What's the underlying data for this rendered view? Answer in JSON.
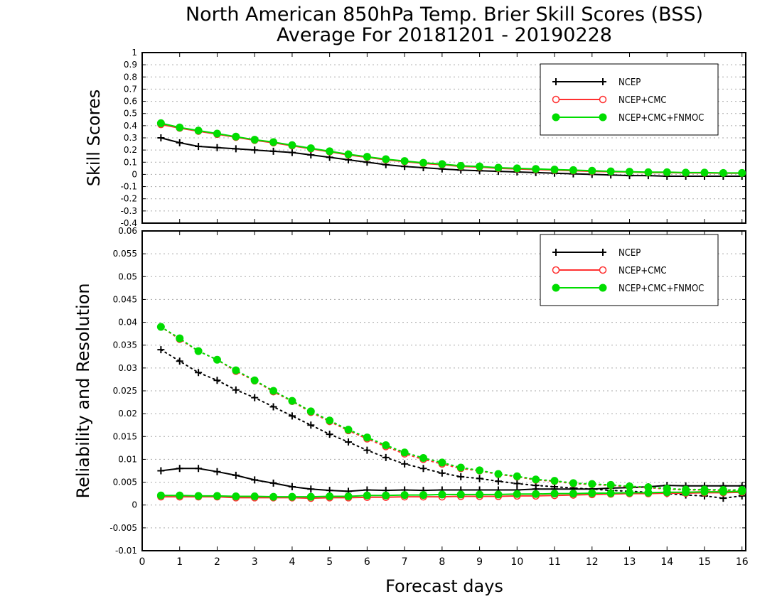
{
  "title_line1": "North American 850hPa Temp. Brier Skill Scores (BSS)",
  "title_line2": "Average For 20181201 - 20190228",
  "xlabel": "Forecast days",
  "chart_data": [
    {
      "type": "line",
      "ylabel": "Skill Scores",
      "xlim": [
        0,
        16.1
      ],
      "ylim": [
        -0.4,
        1
      ],
      "x_ticks": [
        "0",
        "1",
        "2",
        "3",
        "4",
        "5",
        "6",
        "7",
        "8",
        "9",
        "10",
        "11",
        "12",
        "13",
        "14",
        "15",
        "16"
      ],
      "y_ticks": [
        "-0.4",
        "-0.3",
        "-0.2",
        "-0.1",
        "0",
        "0.1",
        "0.2",
        "0.3",
        "0.4",
        "0.5",
        "0.6",
        "0.7",
        "0.8",
        "0.9",
        "1"
      ],
      "grid": true,
      "legend": "top-right",
      "x": [
        0.5,
        1,
        1.5,
        2,
        2.5,
        3,
        3.5,
        4,
        4.5,
        5,
        5.5,
        6,
        6.5,
        7,
        7.5,
        8,
        8.5,
        9,
        9.5,
        10,
        10.5,
        11,
        11.5,
        12,
        12.5,
        13,
        13.5,
        14,
        14.5,
        15,
        15.5,
        16
      ],
      "series": [
        {
          "name": "NCEP",
          "color": "#000000",
          "marker": "plus",
          "values": [
            0.3,
            0.26,
            0.23,
            0.22,
            0.21,
            0.2,
            0.19,
            0.18,
            0.16,
            0.14,
            0.12,
            0.1,
            0.08,
            0.065,
            0.055,
            0.045,
            0.035,
            0.03,
            0.025,
            0.02,
            0.015,
            0.01,
            0.005,
            0.0,
            -0.005,
            -0.01,
            -0.01,
            -0.015,
            -0.015,
            -0.015,
            -0.015,
            -0.015
          ]
        },
        {
          "name": "NCEP+CMC",
          "color": "#ff3030",
          "marker": "open-circle",
          "values": [
            0.41,
            0.38,
            0.355,
            0.33,
            0.305,
            0.28,
            0.26,
            0.235,
            0.21,
            0.185,
            0.16,
            0.14,
            0.12,
            0.105,
            0.09,
            0.08,
            0.065,
            0.06,
            0.05,
            0.045,
            0.04,
            0.035,
            0.03,
            0.025,
            0.022,
            0.02,
            0.015,
            0.015,
            0.012,
            0.012,
            0.01,
            0.01
          ]
        },
        {
          "name": "NCEP+CMC+FNMOC",
          "color": "#00dd00",
          "marker": "filled-circle",
          "values": [
            0.42,
            0.385,
            0.36,
            0.335,
            0.31,
            0.285,
            0.265,
            0.24,
            0.215,
            0.19,
            0.165,
            0.145,
            0.125,
            0.11,
            0.095,
            0.085,
            0.07,
            0.065,
            0.055,
            0.05,
            0.045,
            0.04,
            0.035,
            0.03,
            0.025,
            0.022,
            0.018,
            0.018,
            0.015,
            0.015,
            0.012,
            0.012
          ]
        }
      ]
    },
    {
      "type": "line",
      "ylabel": "Reliability and Resolution",
      "xlim": [
        0,
        16.1
      ],
      "ylim": [
        -0.01,
        0.06
      ],
      "x_ticks": [
        "0",
        "1",
        "2",
        "3",
        "4",
        "5",
        "6",
        "7",
        "8",
        "9",
        "10",
        "11",
        "12",
        "13",
        "14",
        "15",
        "16"
      ],
      "y_ticks": [
        "-0.01",
        "-0.005",
        "0",
        "0.005",
        "0.01",
        "0.015",
        "0.02",
        "0.025",
        "0.03",
        "0.035",
        "0.04",
        "0.045",
        "0.05",
        "0.055",
        "0.06"
      ],
      "grid": true,
      "legend": "top-right",
      "x": [
        0.5,
        1,
        1.5,
        2,
        2.5,
        3,
        3.5,
        4,
        4.5,
        5,
        5.5,
        6,
        6.5,
        7,
        7.5,
        8,
        8.5,
        9,
        9.5,
        10,
        10.5,
        11,
        11.5,
        12,
        12.5,
        13,
        13.5,
        14,
        14.5,
        15,
        15.5,
        16
      ],
      "series": [
        {
          "name": "NCEP",
          "metric": "resolution",
          "style": "dotted",
          "color": "#000000",
          "marker": "plus",
          "values": [
            0.034,
            0.0315,
            0.029,
            0.0273,
            0.0252,
            0.0235,
            0.0215,
            0.0195,
            0.0175,
            0.0155,
            0.0138,
            0.012,
            0.0104,
            0.009,
            0.008,
            0.007,
            0.0062,
            0.0058,
            0.0052,
            0.0047,
            0.0043,
            0.004,
            0.0037,
            0.0035,
            0.0032,
            0.003,
            0.0028,
            0.0025,
            0.0022,
            0.002,
            0.0015,
            0.002
          ]
        },
        {
          "name": "NCEP",
          "metric": "reliability",
          "style": "solid",
          "color": "#000000",
          "marker": "plus",
          "values": [
            0.0075,
            0.008,
            0.008,
            0.0073,
            0.0065,
            0.0055,
            0.0048,
            0.004,
            0.0035,
            0.0032,
            0.003,
            0.0033,
            0.0032,
            0.0033,
            0.0032,
            0.0033,
            0.0033,
            0.0033,
            0.0033,
            0.0033,
            0.0035,
            0.0035,
            0.0035,
            0.0035,
            0.0037,
            0.0038,
            0.004,
            0.0043,
            0.0042,
            0.0042,
            0.0042,
            0.0042
          ]
        },
        {
          "name": "NCEP+CMC",
          "metric": "resolution",
          "style": "dotted",
          "color": "#ff3030",
          "marker": "open-circle",
          "values": [
            0.039,
            0.0363,
            0.0337,
            0.0318,
            0.0293,
            0.0272,
            0.0248,
            0.0227,
            0.0203,
            0.0183,
            0.0163,
            0.0145,
            0.0128,
            0.0112,
            0.01,
            0.009,
            0.008,
            0.0075,
            0.0067,
            0.0062,
            0.0055,
            0.0052,
            0.0047,
            0.0045,
            0.0043,
            0.004,
            0.0038,
            0.0035,
            0.0033,
            0.0033,
            0.0032,
            0.0032
          ]
        },
        {
          "name": "NCEP+CMC",
          "metric": "reliability",
          "style": "solid",
          "color": "#ff3030",
          "marker": "open-circle",
          "values": [
            0.0018,
            0.0018,
            0.0018,
            0.0018,
            0.0016,
            0.0016,
            0.0016,
            0.0016,
            0.0015,
            0.0016,
            0.0016,
            0.0017,
            0.0017,
            0.0018,
            0.0018,
            0.0018,
            0.0019,
            0.0019,
            0.0019,
            0.002,
            0.002,
            0.0021,
            0.0022,
            0.0023,
            0.0024,
            0.0025,
            0.0025,
            0.0026,
            0.0026,
            0.0027,
            0.0027,
            0.0028
          ]
        },
        {
          "name": "NCEP+CMC+FNMOC",
          "metric": "resolution",
          "style": "dotted",
          "color": "#00dd00",
          "marker": "filled-circle",
          "values": [
            0.039,
            0.0365,
            0.0337,
            0.0318,
            0.0295,
            0.0273,
            0.025,
            0.0228,
            0.0205,
            0.0185,
            0.0165,
            0.0148,
            0.0131,
            0.0115,
            0.0103,
            0.0093,
            0.0082,
            0.0076,
            0.0068,
            0.0063,
            0.0056,
            0.0053,
            0.0048,
            0.0046,
            0.0044,
            0.0041,
            0.0039,
            0.0036,
            0.0034,
            0.0034,
            0.0033,
            0.0033
          ]
        },
        {
          "name": "NCEP+CMC+FNMOC",
          "metric": "reliability",
          "style": "solid",
          "color": "#00dd00",
          "marker": "filled-circle",
          "values": [
            0.0021,
            0.0021,
            0.002,
            0.002,
            0.0019,
            0.0019,
            0.0018,
            0.0018,
            0.0018,
            0.0019,
            0.0019,
            0.0021,
            0.0021,
            0.0022,
            0.0022,
            0.0023,
            0.0023,
            0.0023,
            0.0023,
            0.0024,
            0.0024,
            0.0025,
            0.0025,
            0.0026,
            0.0026,
            0.0027,
            0.0027,
            0.0028,
            0.0028,
            0.0029,
            0.0029,
            0.003
          ]
        }
      ]
    }
  ]
}
